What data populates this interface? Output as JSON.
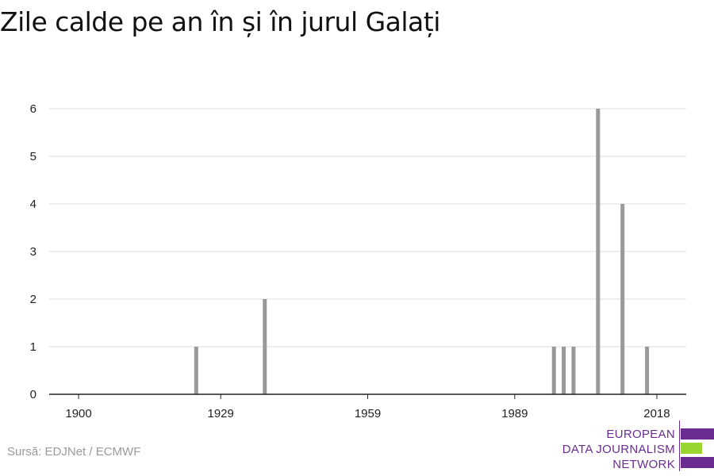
{
  "title": "Zile calde pe an în și în jurul Galați",
  "source": "Sursă: EDJNet / ECMWF",
  "logo": {
    "lines": [
      "EUROPEAN",
      "DATA JOURNALISM",
      "NETWORK"
    ],
    "colors": {
      "purple": "#6b2c91",
      "green": "#98d62f"
    }
  },
  "colors": {
    "bar": "#999999",
    "grid": "#dddddd",
    "axis": "#222222"
  },
  "chart_data": {
    "type": "bar",
    "title": "Zile calde pe an în și în jurul Galați",
    "xlabel": "",
    "ylabel": "",
    "xlim": [
      1894,
      2024
    ],
    "ylim": [
      0,
      6
    ],
    "x_ticks": [
      1900,
      1929,
      1959,
      1989,
      2018
    ],
    "y_ticks": [
      0,
      1,
      2,
      3,
      4,
      5,
      6
    ],
    "grid": true,
    "x": [
      1924,
      1938,
      1997,
      1999,
      2001,
      2006,
      2011,
      2016
    ],
    "values": [
      1,
      2,
      1,
      1,
      1,
      6,
      4,
      1
    ]
  }
}
